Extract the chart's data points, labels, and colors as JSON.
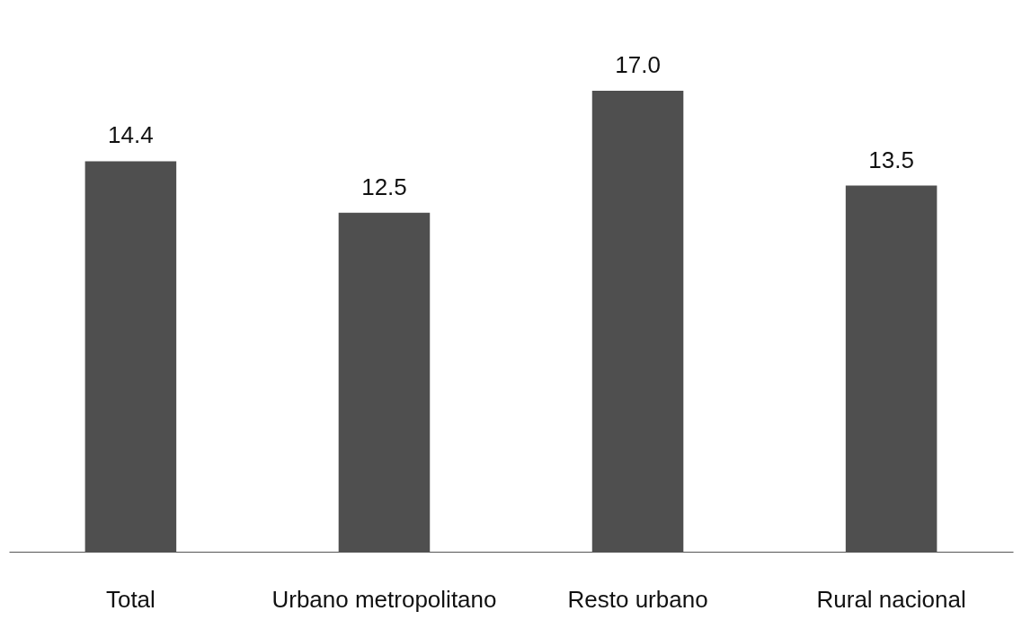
{
  "chart_data": {
    "type": "bar",
    "categories": [
      "Total",
      "Urbano metropolitano",
      "Resto urbano",
      "Rural nacional"
    ],
    "values": [
      14.4,
      12.5,
      17.0,
      13.5
    ],
    "value_labels": [
      "14.4",
      "12.5",
      "17.0",
      "13.5"
    ],
    "color": "#4f4f4f",
    "grid": false
  }
}
